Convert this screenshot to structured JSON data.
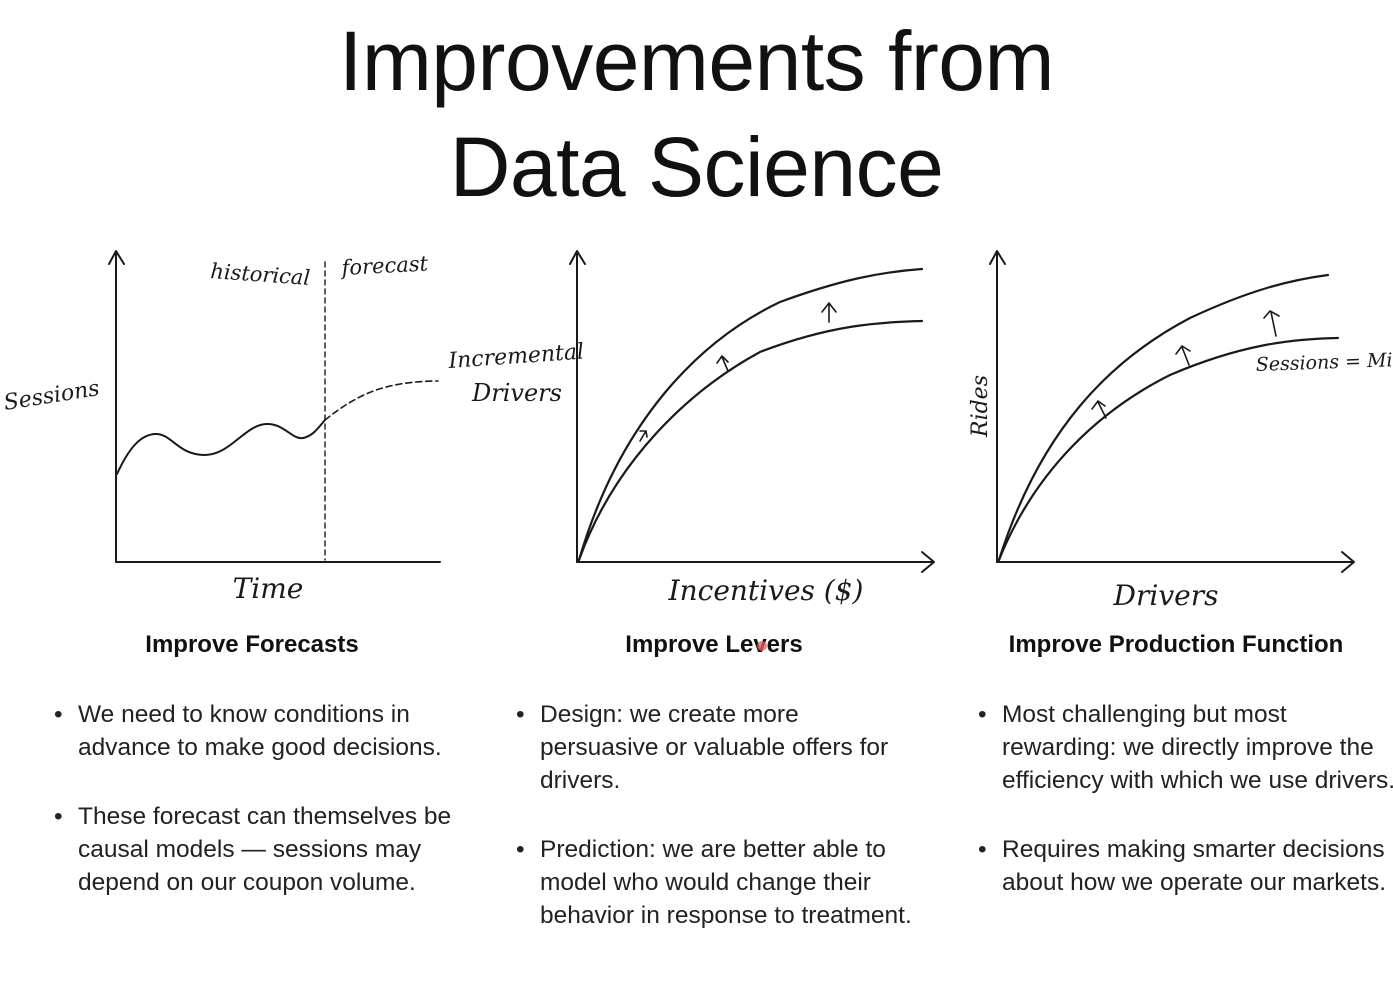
{
  "title": {
    "line1": "Improvements from",
    "line2": "Data Science"
  },
  "charts": [
    {
      "y_label": "Sessions",
      "x_label": "Time",
      "region_left": "historical",
      "region_right": "forecast"
    },
    {
      "y_label_line1": "Incremental",
      "y_label_line2": "Drivers",
      "x_label": "Incentives ($)"
    },
    {
      "y_label": "Rides",
      "x_label": "Drivers",
      "curve_label": "Sessions = Mid"
    }
  ],
  "columns": [
    {
      "heading": "Improve Forecasts",
      "bullets": [
        "We need to know conditions in advance to make good decisions.",
        "These forecast can themselves be causal models — sessions may depend on our coupon volume."
      ]
    },
    {
      "heading": "Improve Levers",
      "bullets": [
        "Design: we create more persuasive or valuable offers for drivers.",
        "Prediction: we are better able to model who would change their behavior in response to treatment."
      ]
    },
    {
      "heading": "Improve Production Function",
      "bullets": [
        "Most challenging but most rewarding: we directly improve the efficiency with which we use drivers.",
        "Requires making smarter decisions about how we operate our markets."
      ]
    }
  ]
}
